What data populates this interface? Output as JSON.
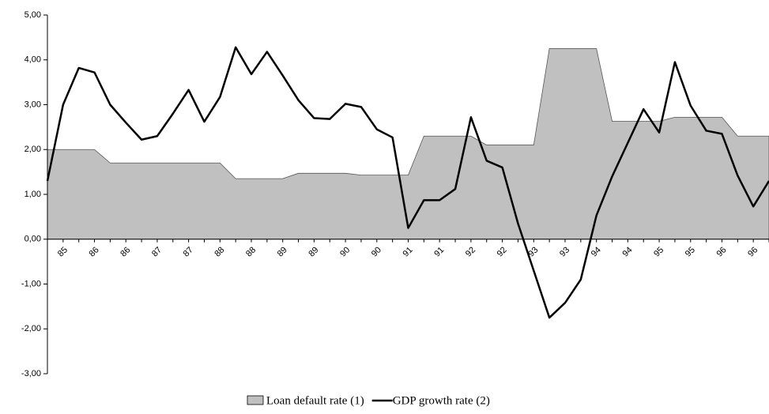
{
  "chart_data": {
    "type": "line",
    "categories": [
      null,
      "85",
      null,
      "86",
      null,
      "86",
      null,
      "87",
      null,
      "87",
      null,
      "88",
      null,
      "88",
      null,
      "89",
      null,
      "89",
      null,
      "90",
      null,
      "90",
      null,
      "91",
      null,
      "91",
      null,
      "92",
      null,
      "92",
      null,
      "93",
      null,
      "93",
      null,
      "94",
      null,
      "94",
      null,
      "95",
      null,
      "95",
      null,
      "96",
      null,
      "96",
      null
    ],
    "series": [
      {
        "name": "Loan default rate (1)",
        "type": "area",
        "color": "#c0c0c0",
        "values": [
          2.0,
          2.0,
          2.0,
          2.0,
          1.7,
          1.7,
          1.7,
          1.7,
          1.7,
          1.7,
          1.7,
          1.7,
          1.35,
          1.35,
          1.35,
          1.35,
          1.47,
          1.47,
          1.47,
          1.47,
          1.43,
          1.43,
          1.43,
          1.43,
          2.3,
          2.3,
          2.3,
          2.3,
          2.1,
          2.1,
          2.1,
          2.1,
          4.25,
          4.25,
          4.25,
          4.25,
          2.63,
          2.63,
          2.63,
          2.63,
          2.72,
          2.72,
          2.72,
          2.72,
          2.3,
          2.3,
          2.3
        ]
      },
      {
        "name": "GDP growth rate (2)",
        "type": "line",
        "color": "#000000",
        "values": [
          1.3,
          3.0,
          3.82,
          3.72,
          3.0,
          2.6,
          2.22,
          2.3,
          2.8,
          3.33,
          2.62,
          3.17,
          4.28,
          3.68,
          4.18,
          3.65,
          3.1,
          2.7,
          2.68,
          3.02,
          2.95,
          2.45,
          2.27,
          0.25,
          0.87,
          0.87,
          1.12,
          2.72,
          1.75,
          1.6,
          0.35,
          -0.7,
          -1.75,
          -1.42,
          -0.9,
          0.53,
          1.4,
          2.15,
          2.9,
          2.38,
          3.95,
          2.98,
          2.42,
          2.35,
          1.42,
          0.73,
          1.3
        ]
      }
    ],
    "ylim": [
      -3,
      5
    ],
    "yticks": [
      {
        "value": -3,
        "label": "-3,00"
      },
      {
        "value": -2,
        "label": "-2,00"
      },
      {
        "value": -1,
        "label": "-1,00"
      },
      {
        "value": 0,
        "label": "0,00"
      },
      {
        "value": 1,
        "label": "1,00"
      },
      {
        "value": 2,
        "label": "2,00"
      },
      {
        "value": 3,
        "label": "3,00"
      },
      {
        "value": 4,
        "label": "4,00"
      },
      {
        "value": 5,
        "label": "5,00"
      }
    ],
    "grid": false,
    "legend": "bottom"
  }
}
